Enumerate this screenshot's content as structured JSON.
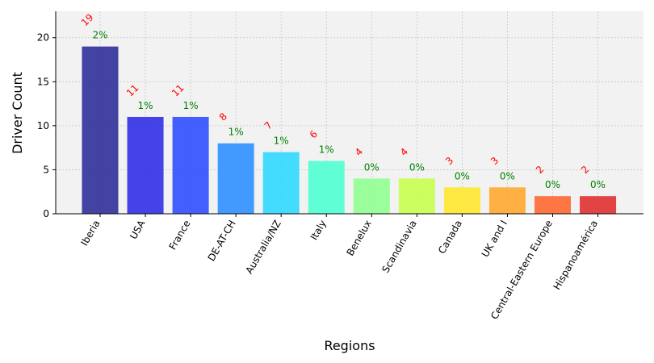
{
  "chart_data": {
    "type": "bar",
    "title": "",
    "xlabel": "Regions",
    "ylabel": "Driver Count",
    "ylim": [
      0,
      23
    ],
    "yticks": [
      0,
      5,
      10,
      15,
      20
    ],
    "grid": true,
    "background": "#f2f2f2",
    "categories": [
      "Iberia",
      "USA",
      "France",
      "DE-AT-CH",
      "Australia/NZ",
      "Italy",
      "Benelux",
      "Scandinavia",
      "Canada",
      "UK and I",
      "Central-Eastern Europe",
      "Hispanoamérica"
    ],
    "values": [
      19,
      11,
      11,
      8,
      7,
      6,
      4,
      4,
      3,
      3,
      2,
      2
    ],
    "count_labels": [
      "19",
      "11",
      "11",
      "8",
      "7",
      "6",
      "4",
      "4",
      "3",
      "3",
      "2",
      "2"
    ],
    "percent_labels": [
      "2%",
      "1%",
      "1%",
      "1%",
      "1%",
      "1%",
      "0%",
      "0%",
      "0%",
      "0%",
      "0%",
      "0%"
    ],
    "colors": [
      "#30309a",
      "#3030e5",
      "#3050ff",
      "#3090ff",
      "#30d8ff",
      "#50ffd0",
      "#90ff90",
      "#c8ff50",
      "#ffe830",
      "#ffa830",
      "#ff6830",
      "#e03030"
    ],
    "count_label_color": "#ff0000",
    "percent_label_color": "#008000"
  }
}
